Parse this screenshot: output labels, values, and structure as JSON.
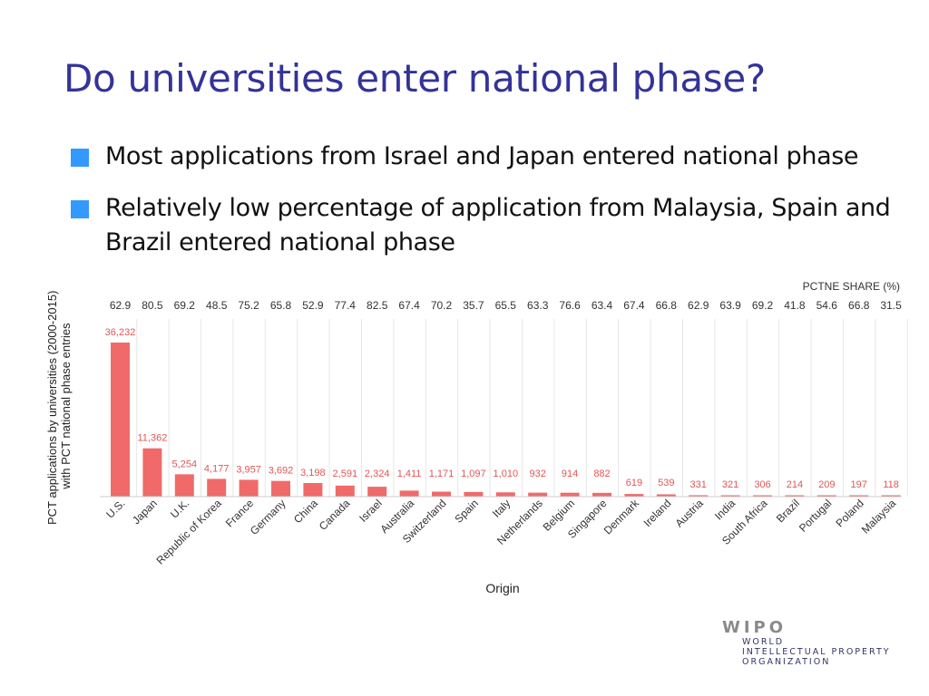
{
  "slide": {
    "title": "Do universities enter national phase?",
    "bullets": [
      "Most applications from Israel and Japan entered national phase",
      "Relatively low percentage of application from Malaysia, Spain and Brazil entered national phase"
    ],
    "bullet_color": "#3399ff"
  },
  "chart_data": {
    "type": "bar",
    "ylabel": "PCT applications by universities (2000-2015) with PCT national phase entries",
    "xlabel": "Origin",
    "categories": [
      "U.S.",
      "Japan",
      "U.K.",
      "Republic of Korea",
      "France",
      "Germany",
      "China",
      "Canada",
      "Israel",
      "Australia",
      "Switzerland",
      "Spain",
      "Italy",
      "Netherlands",
      "Belgium",
      "Singapore",
      "Denmark",
      "Ireland",
      "Austria",
      "India",
      "South Africa",
      "Brazil",
      "Portugal",
      "Poland",
      "Malaysia"
    ],
    "values": [
      36232,
      11362,
      5254,
      4177,
      3957,
      3692,
      3198,
      2591,
      2324,
      1411,
      1171,
      1097,
      1010,
      932,
      914,
      882,
      619,
      539,
      331,
      321,
      306,
      214,
      209,
      197,
      118
    ],
    "value_labels": [
      "36,232",
      "11,362",
      "5,254",
      "4,177",
      "3,957",
      "3,692",
      "3,198",
      "2,591",
      "2,324",
      "1,411",
      "1,171",
      "1,097",
      "1,010",
      "932",
      "914",
      "882",
      "619",
      "539",
      "331",
      "321",
      "306",
      "214",
      "209",
      "197",
      "118"
    ],
    "secondary_label": "PCTNE SHARE (%)",
    "secondary_values": [
      "62.9",
      "80.5",
      "69.2",
      "48.5",
      "75.2",
      "65.8",
      "52.9",
      "77.4",
      "82.5",
      "67.4",
      "70.2",
      "35.7",
      "65.5",
      "63.3",
      "76.6",
      "63.4",
      "67.4",
      "66.8",
      "62.9",
      "63.9",
      "69.2",
      "41.8",
      "54.6",
      "66.8",
      "31.5"
    ],
    "ylim": [
      0,
      40000
    ],
    "grid": "vertical",
    "bar_color": "#f06a6a",
    "label_color": "#e25555"
  },
  "logo": {
    "mark": "WIPO",
    "lines": [
      "WORLD",
      "INTELLECTUAL PROPERTY",
      "ORGANIZATION"
    ]
  }
}
